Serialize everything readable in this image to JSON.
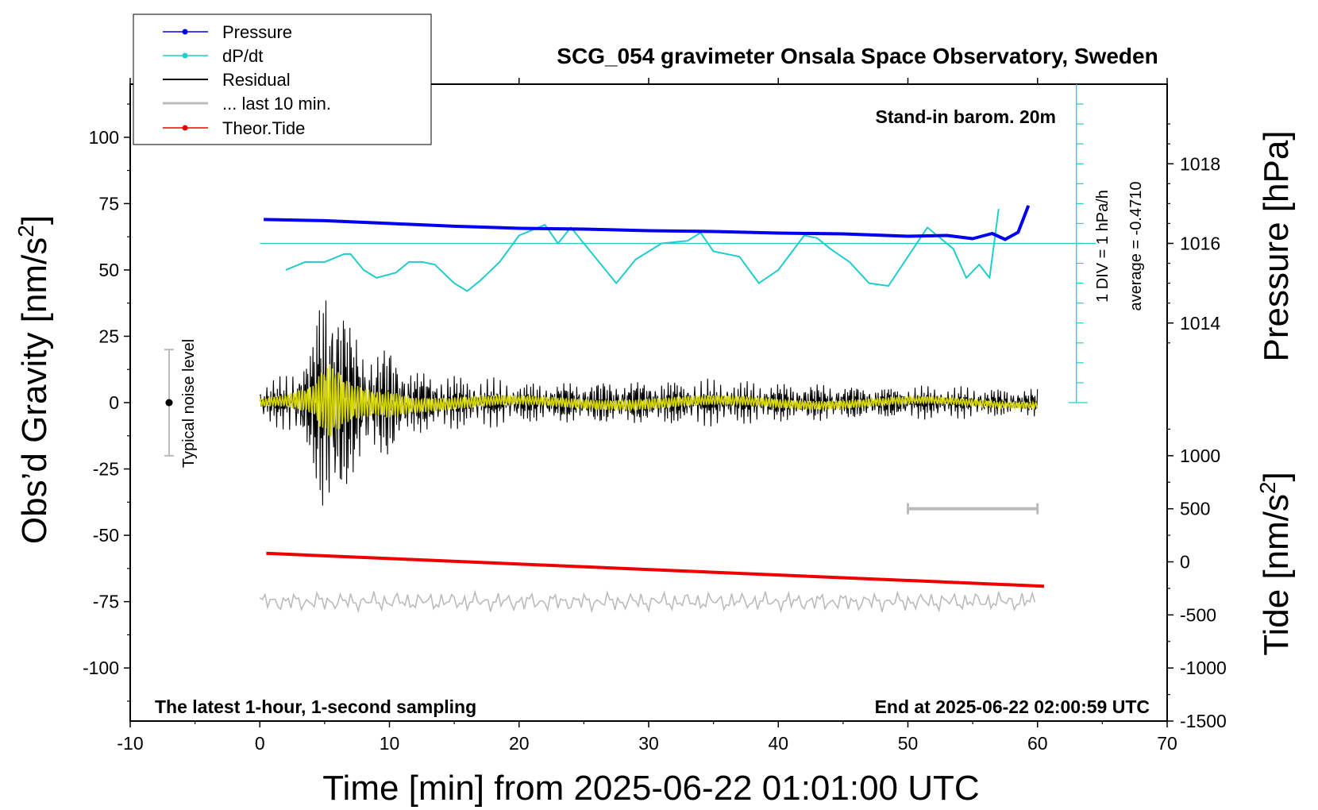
{
  "chart_data": {
    "type": "line",
    "title": "SCG_054 gravimeter Onsala Space Observatory, Sweden",
    "xlabel": "Time [min] from 2025-06-22 01:01:00 UTC",
    "ylabel_left": "Obs’d Gravity [nm/s²]",
    "ylabel_right_top": "Pressure [hPa]",
    "ylabel_right_bottom": "Tide [nm/s²]",
    "xlim": [
      -10,
      70
    ],
    "ylim": [
      -120,
      120
    ],
    "x_ticks": [
      "-10",
      "0",
      "10",
      "20",
      "30",
      "40",
      "50",
      "60",
      "70"
    ],
    "x_tick_values": [
      -10,
      0,
      10,
      20,
      30,
      40,
      50,
      60,
      70
    ],
    "y_ticks": [
      "100",
      "75",
      "50",
      "25",
      "0",
      "-25",
      "-50",
      "-75",
      "-100"
    ],
    "y_tick_values": [
      100,
      75,
      50,
      25,
      0,
      -25,
      -50,
      -75,
      -100
    ],
    "pressure_axis": {
      "ticks": [
        "1018",
        "1016",
        "1014"
      ],
      "tick_values": [
        1018,
        1016,
        1014
      ],
      "gravity_equiv": {
        "1018": 90,
        "1016": 60,
        "1014": 30
      }
    },
    "tide_axis": {
      "ticks": [
        "1000",
        "500",
        "0",
        "-500",
        "-1000",
        "-1500"
      ],
      "tick_values": [
        1000,
        500,
        0,
        -500,
        -1000,
        -1500
      ],
      "gravity_equiv_at_0": -60,
      "gravity_per_unit": 0.04
    },
    "legend": {
      "placement": "top-left",
      "entries": [
        {
          "label": "Pressure",
          "color": "#0000ee",
          "marker": "dot"
        },
        {
          "label": "dP/dt",
          "color": "#22cccc",
          "marker": "dot"
        },
        {
          "label": "Residual",
          "color": "#000000",
          "marker": "none"
        },
        {
          "label": "... last 10 min.",
          "color": "#bbbbbb",
          "marker": "none"
        },
        {
          "label": "Theor.Tide",
          "color": "#ee0000",
          "marker": "dot"
        }
      ]
    },
    "annotations": {
      "barometer": "Stand-in barom. 20m",
      "latest": "The latest 1-hour, 1-second sampling",
      "end": "End at 2025-06-22 02:00:59 UTC",
      "noise": "Typical noise level",
      "div": "1 DIV = 1 hPa/h",
      "average": "average = -0.4710"
    },
    "noise_bar": {
      "x": -7,
      "center": 0,
      "half_range": 20
    },
    "window_bar": {
      "x_start": 50,
      "x_end": 60,
      "y_tide": 500
    },
    "series": [
      {
        "name": "Pressure",
        "unit": "hPa",
        "color": "#0000ee",
        "x": [
          0.3,
          5,
          10,
          15,
          20,
          25,
          30,
          35,
          40,
          45,
          50,
          53,
          55,
          56.5,
          57.5,
          58.5,
          59.3
        ],
        "values": [
          1016.6,
          1016.57,
          1016.5,
          1016.43,
          1016.38,
          1016.36,
          1016.32,
          1016.3,
          1016.26,
          1016.24,
          1016.18,
          1016.2,
          1016.12,
          1016.25,
          1016.1,
          1016.28,
          1016.95
        ]
      },
      {
        "name": "dP/dt",
        "color": "#22cccc",
        "x": [
          2,
          3.5,
          5,
          6.5,
          7,
          8,
          9,
          10.5,
          11.5,
          12.5,
          13.5,
          15,
          16,
          17,
          18.5,
          20,
          21,
          22,
          23,
          24,
          25,
          27.5,
          29,
          31,
          33,
          34,
          35,
          37,
          38.5,
          40,
          42,
          43,
          44,
          45.5,
          47,
          48.5,
          50,
          51.5,
          52.5,
          53.5,
          54.5,
          55.5,
          56.3,
          57
        ],
        "values": [
          50,
          53,
          53,
          56,
          56,
          50,
          47,
          49,
          53,
          53,
          52,
          45,
          42,
          46,
          53,
          63,
          65,
          67,
          60,
          66,
          60,
          45,
          54,
          60,
          61,
          64,
          57,
          55,
          45,
          50,
          63,
          62,
          58,
          53,
          45,
          44,
          55,
          66,
          62,
          58,
          47,
          52,
          47,
          73
        ]
      },
      {
        "name": "Theor.Tide",
        "unit": "nm/s²",
        "color": "#ee0000",
        "x": [
          0.5,
          60.5
        ],
        "values": [
          80,
          -230
        ]
      },
      {
        "name": "Residual",
        "color": "#000000",
        "x_start": 0,
        "x_end": 60,
        "envelope": {
          "x": [
            0,
            2,
            4,
            5,
            5.5,
            6,
            7,
            8,
            9,
            10,
            12,
            15,
            20,
            30,
            40,
            50,
            60
          ],
          "amplitude": [
            5,
            8,
            18,
            45,
            50,
            40,
            25,
            20,
            16,
            18,
            10,
            8,
            6,
            7,
            6,
            5,
            4
          ]
        }
      },
      {
        "name": "... last 10 min.",
        "color": "#bbbbbb",
        "x_start": 0,
        "x_end": 60,
        "center": -75,
        "amplitude": 3
      }
    ]
  }
}
